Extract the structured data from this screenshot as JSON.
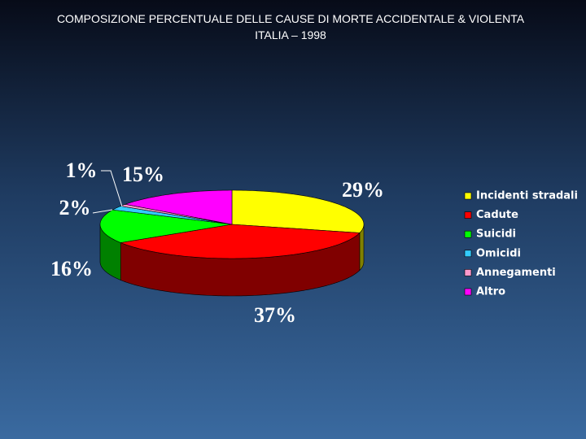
{
  "chart_data": {
    "type": "pie3d",
    "title": "COMPOSIZIONE PERCENTUALE DELLE CAUSE DI MORTE ACCIDENTALE & VIOLENTA",
    "subtitle": "ITALIA – 1998",
    "categories": [
      "Incidenti stradali",
      "Cadute",
      "Suicidi",
      "Omicidi",
      "Annegamenti",
      "Altro"
    ],
    "values": [
      29,
      37,
      16,
      2,
      1,
      15
    ],
    "value_labels": [
      "29%",
      "37%",
      "16%",
      "2%",
      "1%",
      "15%"
    ],
    "colors": [
      "#ffff00",
      "#ff0000",
      "#00ff00",
      "#33ccff",
      "#ff99cc",
      "#ff00ff"
    ],
    "legend": "right"
  }
}
